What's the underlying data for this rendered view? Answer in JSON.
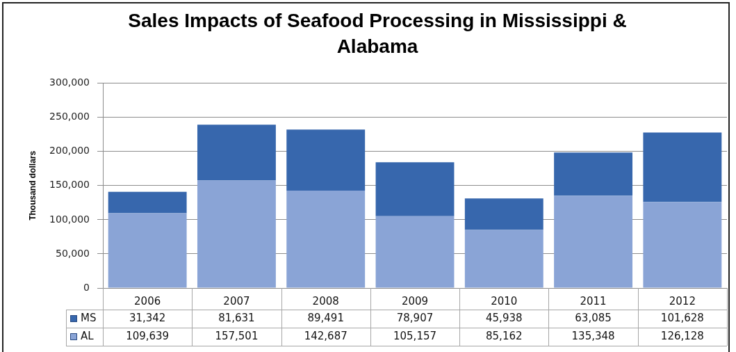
{
  "chart_data": {
    "type": "bar",
    "title": "Sales Impacts of Seafood Processing in Mississippi & Alabama",
    "ylabel": "Thousand dollars",
    "categories": [
      "2006",
      "2007",
      "2008",
      "2009",
      "2010",
      "2011",
      "2012"
    ],
    "stacked": true,
    "series": [
      {
        "name": "AL",
        "color": "#8aa4d6",
        "values": [
          109639,
          157501,
          142687,
          105157,
          85162,
          135348,
          126128
        ],
        "value_labels": [
          "109,639",
          "157,501",
          "142,687",
          "105,157",
          "85,162",
          "135,348",
          "126,128"
        ]
      },
      {
        "name": "MS",
        "color": "#3767ad",
        "values": [
          31342,
          81631,
          89491,
          78907,
          45938,
          63085,
          101628
        ],
        "value_labels": [
          "31,342",
          "81,631",
          "89,491",
          "78,907",
          "45,938",
          "63,085",
          "101,628"
        ]
      }
    ],
    "ylim": [
      0,
      300000
    ],
    "yticks": [
      {
        "value": 0,
        "label": "0"
      },
      {
        "value": 50000,
        "label": "50,000"
      },
      {
        "value": 100000,
        "label": "100,000"
      },
      {
        "value": 150000,
        "label": "150,000"
      },
      {
        "value": 200000,
        "label": "200,000"
      },
      {
        "value": 250000,
        "label": "250,000"
      },
      {
        "value": 300000,
        "label": "300,000"
      }
    ],
    "grid": "y",
    "legend": "bottom left"
  }
}
